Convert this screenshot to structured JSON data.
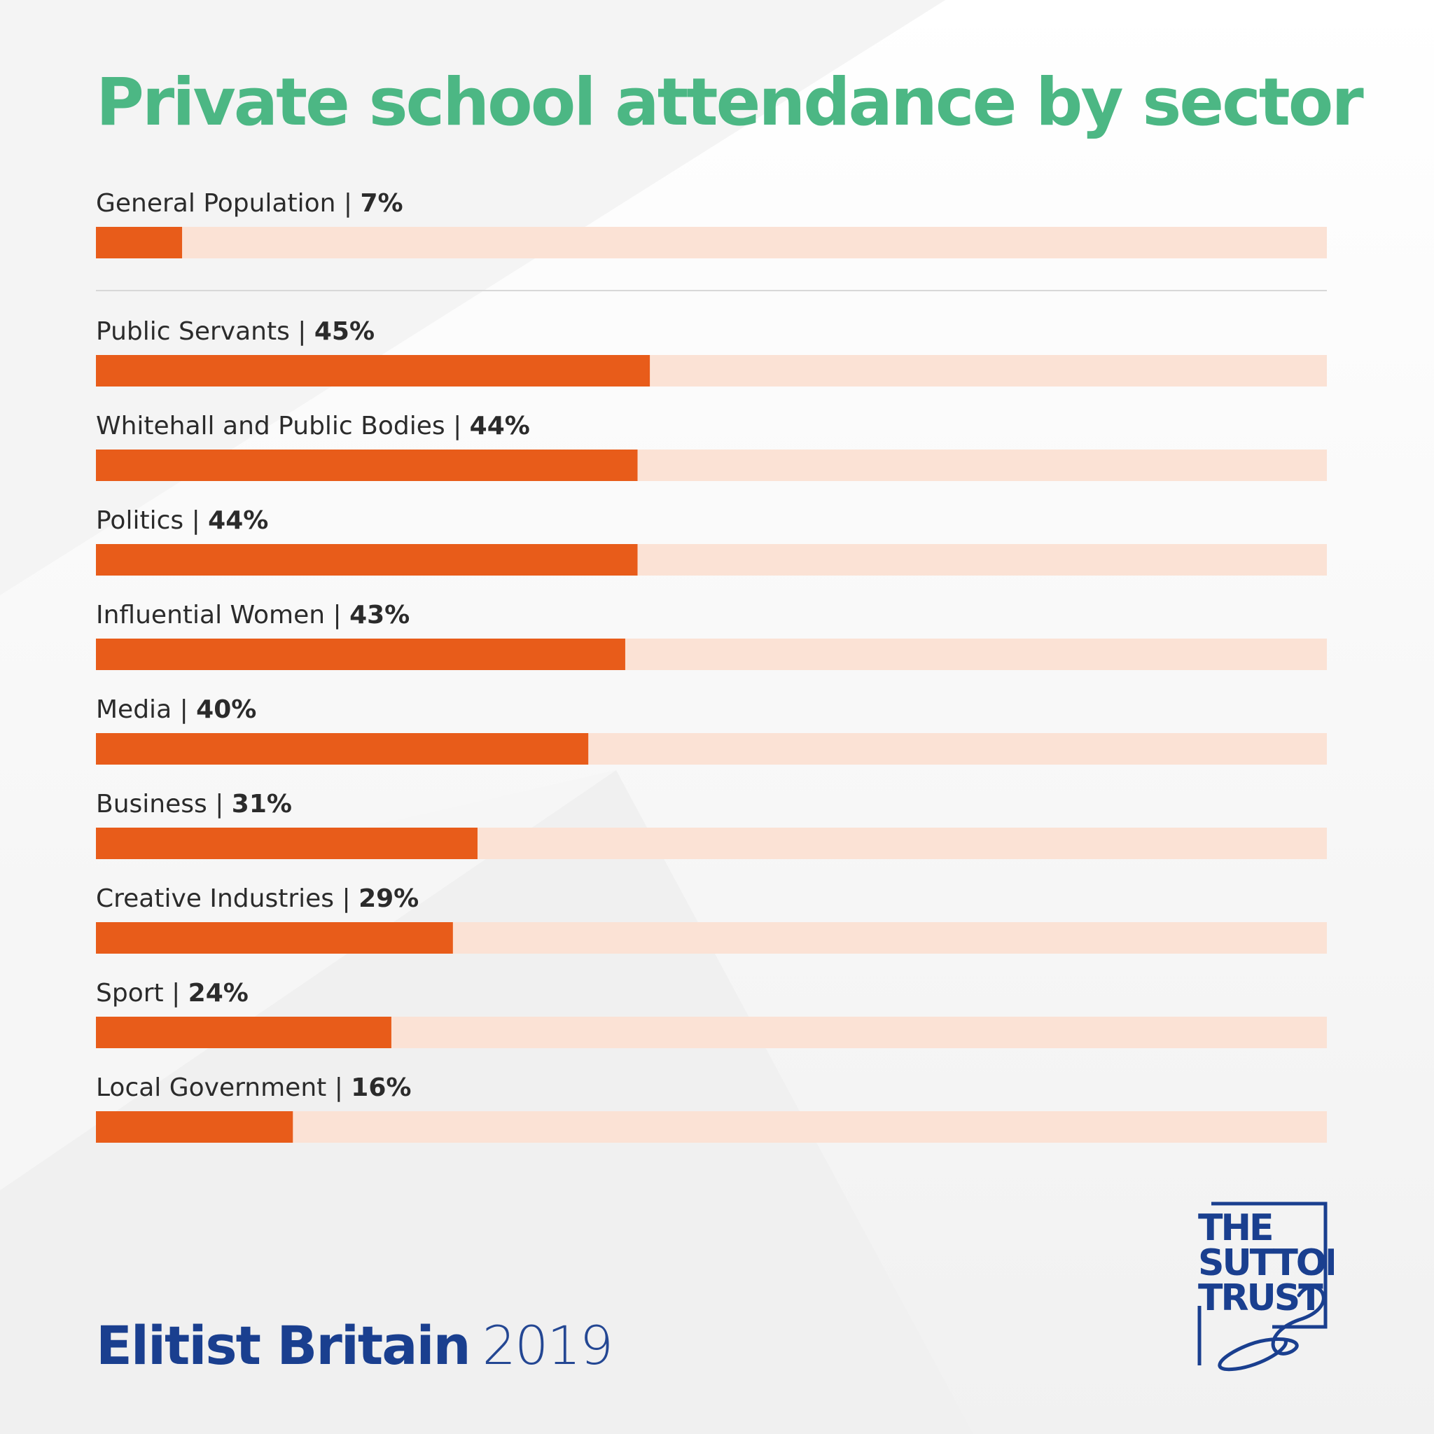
{
  "colors": {
    "title": "#4cb784",
    "bar_fill": "#e85c1a",
    "bar_track": "#fbe2d5",
    "divider": "#d8d8d8",
    "brand_blue": "#1a3f8f",
    "text": "#2b2b2b"
  },
  "chart_data": {
    "type": "bar",
    "orientation": "horizontal",
    "title": "Private school attendance by sector",
    "xlim": [
      0,
      100
    ],
    "grid": false,
    "legend": "none",
    "categories": [
      "General Population",
      "Public Servants",
      "Whitehall and Public Bodies",
      "Politics",
      "Influential Women",
      "Media",
      "Business",
      "Creative Industries",
      "Sport",
      "Local Government"
    ],
    "values": [
      7,
      45,
      44,
      44,
      43,
      40,
      31,
      29,
      24,
      16
    ],
    "value_labels": [
      "7%",
      "45%",
      "44%",
      "44%",
      "43%",
      "40%",
      "31%",
      "29%",
      "24%",
      "16%"
    ],
    "separator_after_index": 0
  },
  "footer": {
    "title": "Elitist Britain",
    "year": "2019"
  },
  "logo": {
    "lines": [
      "THE",
      "SUTTON",
      "TRUST"
    ]
  }
}
